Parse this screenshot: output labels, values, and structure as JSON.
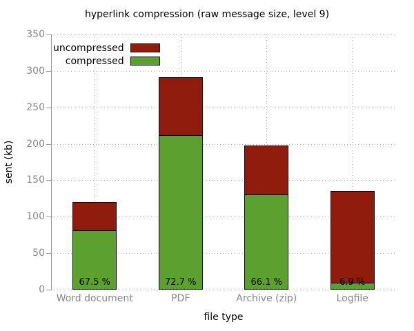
{
  "chart_data": {
    "type": "bar",
    "stacked": true,
    "title": "hyperlink compression (raw message size, level 9)",
    "xlabel": "file type",
    "ylabel": "sent (kb)",
    "ylim": [
      0,
      350
    ],
    "yticks": [
      0,
      50,
      100,
      150,
      200,
      250,
      300,
      350
    ],
    "grid": "dotted",
    "legend_position": "top-left",
    "categories": [
      "Word document",
      "PDF",
      "Archive (zip)",
      "Logfile"
    ],
    "series": [
      {
        "name": "uncompressed",
        "color": "#8e1b0c",
        "values": [
          120,
          291,
          198,
          135
        ]
      },
      {
        "name": "compressed",
        "color": "#5ca030",
        "values": [
          81,
          211.6,
          130.9,
          9.3
        ]
      }
    ],
    "bar_labels": [
      "67.5 %",
      "72.7 %",
      "66.1 %",
      "6.9 %"
    ]
  },
  "colors": {
    "axis": "#9a9a9a",
    "grid": "#b4b4b4",
    "tick_text": "#878787",
    "bar_border": "#000000",
    "background": "#ffffff"
  }
}
